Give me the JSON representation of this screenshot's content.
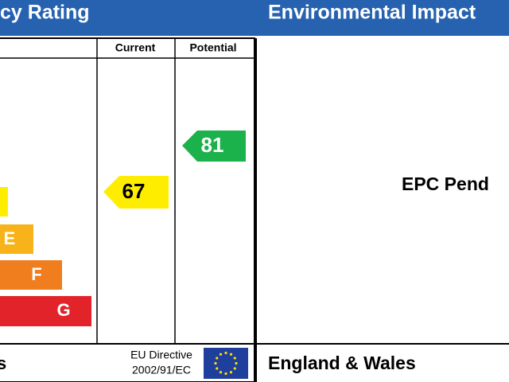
{
  "header": {
    "left_title": "cy Rating",
    "right_title": "Environmental Impact"
  },
  "table": {
    "columns": [
      "Current",
      "Potential"
    ],
    "bands": [
      "E",
      "F",
      "G"
    ]
  },
  "ratings": {
    "current": 67,
    "potential": 81
  },
  "right_panel": {
    "status": "EPC Pend"
  },
  "footer": {
    "left": "s",
    "directive": [
      "EU Directive",
      "2002/91/EC"
    ],
    "region": "England & Wales"
  }
}
